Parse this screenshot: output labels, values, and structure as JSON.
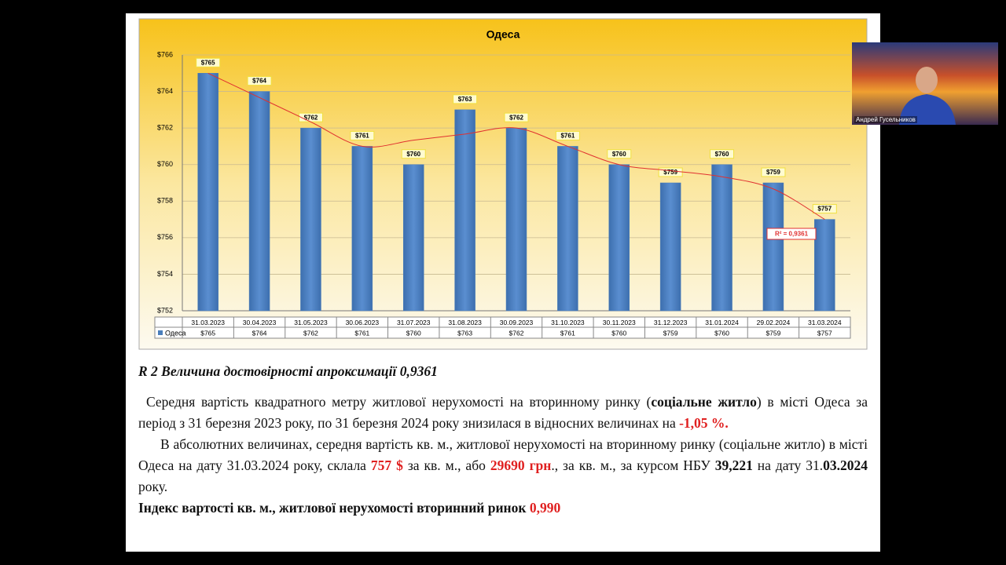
{
  "chart_data": {
    "type": "bar",
    "title": "Одеса",
    "categories": [
      "31.03.2023",
      "30.04.2023",
      "31.05.2023",
      "30.06.2023",
      "31.07.2023",
      "31.08.2023",
      "30.09.2023",
      "31.10.2023",
      "30.11.2023",
      "31.12.2023",
      "31.01.2024",
      "29.02.2024",
      "31.03.2024"
    ],
    "series": [
      {
        "name": "Одеса",
        "color": "#4a7ebb",
        "values": [
          765,
          764,
          762,
          761,
          760,
          763,
          762,
          761,
          760,
          759,
          760,
          759,
          757
        ],
        "value_labels": [
          "$765",
          "$764",
          "$762",
          "$761",
          "$760",
          "$763",
          "$762",
          "$761",
          "$760",
          "$759",
          "$760",
          "$759",
          "$757"
        ]
      }
    ],
    "ylim": [
      752,
      766
    ],
    "yticks": [
      {
        "value": 752,
        "label": "$752"
      },
      {
        "value": 754,
        "label": "$754"
      },
      {
        "value": 756,
        "label": "$756"
      },
      {
        "value": 758,
        "label": "$758"
      },
      {
        "value": 760,
        "label": "$760"
      },
      {
        "value": 762,
        "label": "$762"
      },
      {
        "value": 764,
        "label": "$764"
      },
      {
        "value": 766,
        "label": "$766"
      }
    ],
    "grid": true,
    "trendline": {
      "color": "#e03030",
      "label": "R² = 0,9361"
    }
  },
  "document": {
    "heading": "R 2 Величина достовірності апроксимації 0,9361",
    "paragraphs": [
      [
        "Середня вартість квадратного метру житлової нерухомості на вторинному ринку (",
        "соціальне житло",
        ") в місті Одеса за період з 31 березня 2023 року, по 31 березня 2024 року знизилася в відносних величинах на ",
        "-1,05 %."
      ],
      [
        "В абсолютних величинах, середня вартість кв. м., житлової нерухомості на вторинному ринку (соціальне житло) в місті Одеса на дату 31.03.2024 року, склала ",
        "757 $",
        " за кв. м., або ",
        "29690 грн",
        "., за кв. м., за курсом НБУ ",
        "39,221",
        " на дату 31.",
        "03.2024",
        " року."
      ],
      [
        "Індекс вартості кв. м., житлової нерухомості вторинний ринок ",
        "0,990"
      ]
    ]
  },
  "participant": {
    "name": "Андрей Гусельников"
  }
}
